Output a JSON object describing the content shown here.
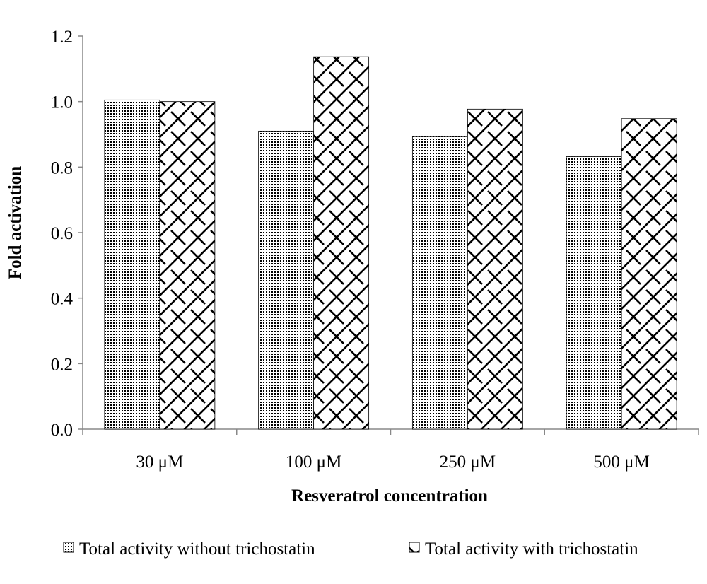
{
  "chart_data": {
    "type": "bar",
    "categories": [
      "30 μM",
      "100 μM",
      "250 μM",
      "500 μM"
    ],
    "series": [
      {
        "name": "Total activity without trichostatin",
        "values": [
          1.005,
          0.91,
          0.893,
          0.832
        ],
        "pattern": "dots"
      },
      {
        "name": "Total activity with trichostatin",
        "values": [
          1.0,
          1.137,
          0.977,
          0.948
        ],
        "pattern": "zigzag"
      }
    ],
    "title": "",
    "xlabel": "Resveratrol concentration",
    "ylabel": "Fold activation",
    "ylim": [
      0,
      1.2
    ],
    "yticks": [
      "0.0",
      "0.2",
      "0.4",
      "0.6",
      "0.8",
      "1.0",
      "1.2"
    ],
    "grid": false,
    "legend_position": "bottom"
  }
}
